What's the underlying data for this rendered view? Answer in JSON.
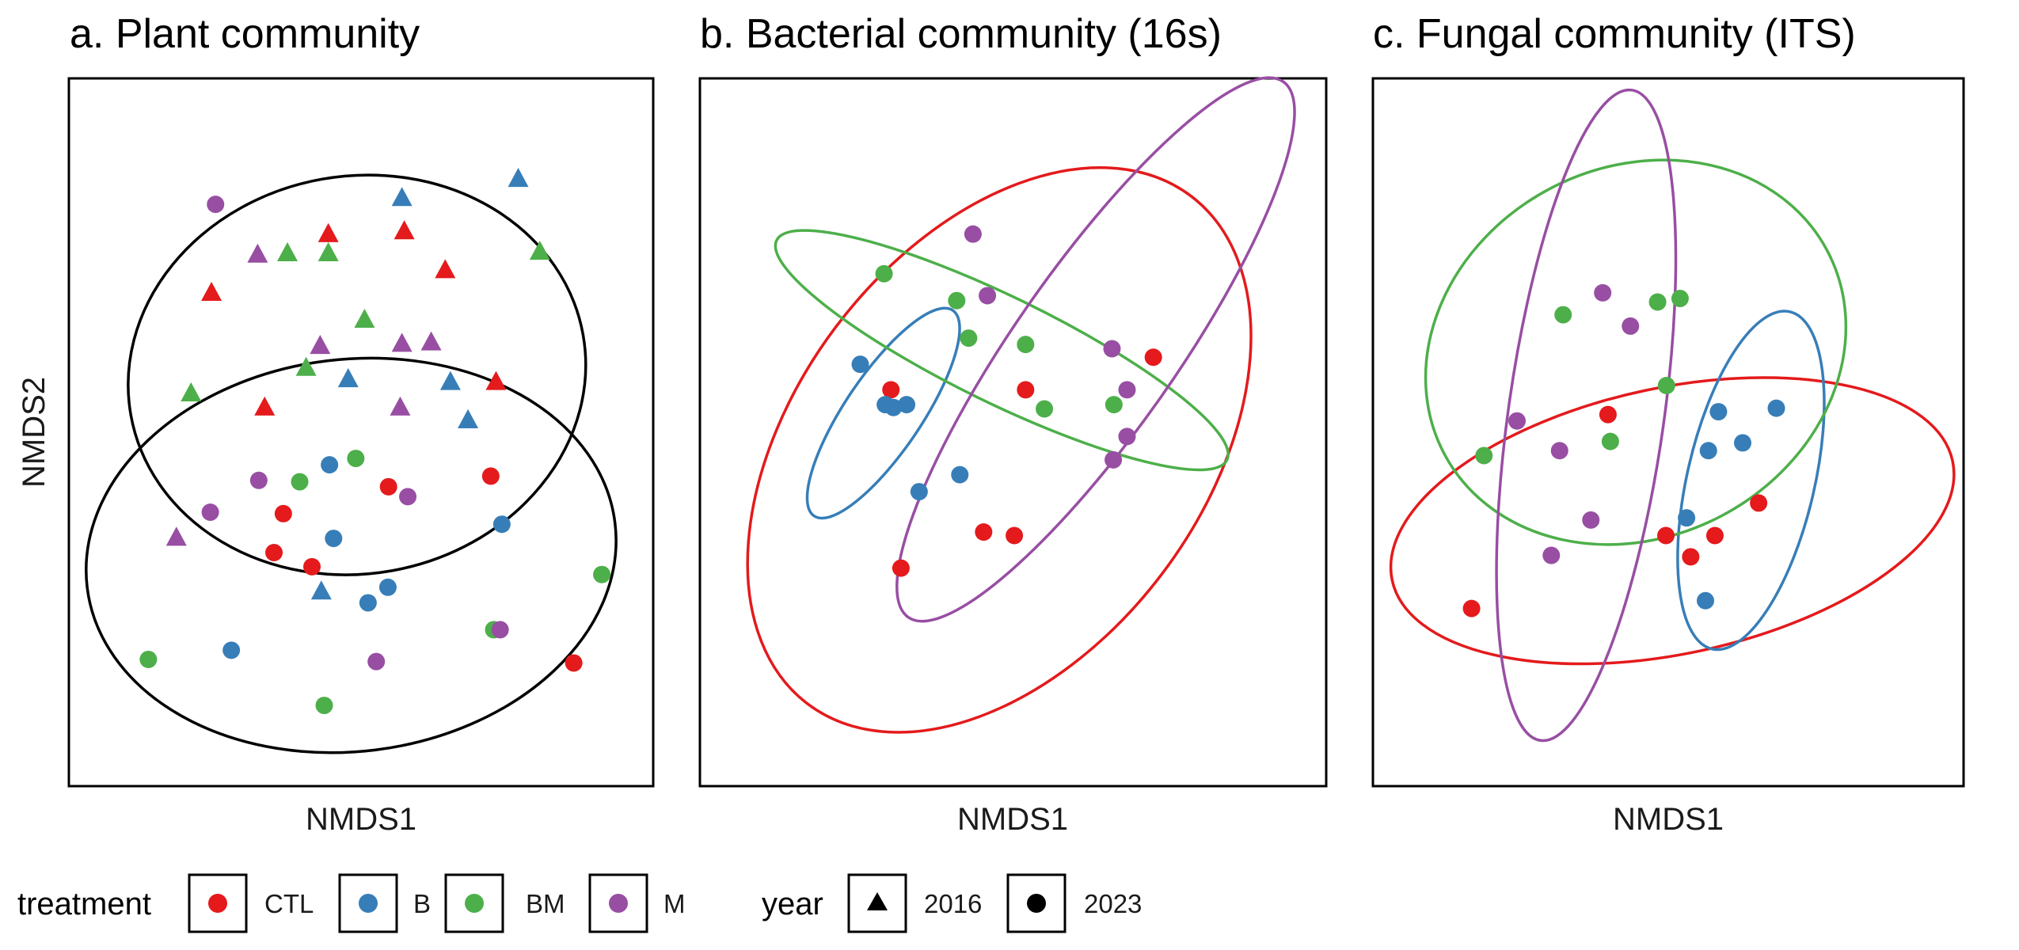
{
  "chart_data": [
    {
      "type": "scatter",
      "title": "a. Plant community",
      "xlabel": "NMDS1",
      "ylabel": "NMDS2",
      "xlim": [
        0,
        1
      ],
      "ylim": [
        0,
        1
      ],
      "grid": false,
      "points": [
        {
          "x": 0.251,
          "y": 0.822,
          "group": "M",
          "year": "2023"
        },
        {
          "x": 0.769,
          "y": 0.859,
          "group": "B",
          "year": "2016"
        },
        {
          "x": 0.57,
          "y": 0.832,
          "group": "B",
          "year": "2016"
        },
        {
          "x": 0.444,
          "y": 0.781,
          "group": "CTL",
          "year": "2016"
        },
        {
          "x": 0.574,
          "y": 0.785,
          "group": "CTL",
          "year": "2016"
        },
        {
          "x": 0.323,
          "y": 0.752,
          "group": "M",
          "year": "2016"
        },
        {
          "x": 0.374,
          "y": 0.754,
          "group": "BM",
          "year": "2016"
        },
        {
          "x": 0.444,
          "y": 0.754,
          "group": "BM",
          "year": "2016"
        },
        {
          "x": 0.806,
          "y": 0.756,
          "group": "BM",
          "year": "2016"
        },
        {
          "x": 0.644,
          "y": 0.73,
          "group": "CTL",
          "year": "2016"
        },
        {
          "x": 0.244,
          "y": 0.698,
          "group": "CTL",
          "year": "2016"
        },
        {
          "x": 0.506,
          "y": 0.66,
          "group": "BM",
          "year": "2016"
        },
        {
          "x": 0.43,
          "y": 0.623,
          "group": "M",
          "year": "2016"
        },
        {
          "x": 0.57,
          "y": 0.626,
          "group": "M",
          "year": "2016"
        },
        {
          "x": 0.62,
          "y": 0.628,
          "group": "M",
          "year": "2016"
        },
        {
          "x": 0.406,
          "y": 0.592,
          "group": "BM",
          "year": "2016"
        },
        {
          "x": 0.478,
          "y": 0.576,
          "group": "B",
          "year": "2016"
        },
        {
          "x": 0.653,
          "y": 0.572,
          "group": "B",
          "year": "2016"
        },
        {
          "x": 0.731,
          "y": 0.572,
          "group": "CTL",
          "year": "2016"
        },
        {
          "x": 0.209,
          "y": 0.556,
          "group": "BM",
          "year": "2016"
        },
        {
          "x": 0.335,
          "y": 0.536,
          "group": "CTL",
          "year": "2016"
        },
        {
          "x": 0.567,
          "y": 0.536,
          "group": "M",
          "year": "2016"
        },
        {
          "x": 0.683,
          "y": 0.518,
          "group": "B",
          "year": "2016"
        },
        {
          "x": 0.491,
          "y": 0.463,
          "group": "BM",
          "year": "2023"
        },
        {
          "x": 0.446,
          "y": 0.454,
          "group": "B",
          "year": "2023"
        },
        {
          "x": 0.722,
          "y": 0.438,
          "group": "CTL",
          "year": "2023"
        },
        {
          "x": 0.325,
          "y": 0.432,
          "group": "M",
          "year": "2023"
        },
        {
          "x": 0.395,
          "y": 0.43,
          "group": "BM",
          "year": "2023"
        },
        {
          "x": 0.547,
          "y": 0.423,
          "group": "CTL",
          "year": "2023"
        },
        {
          "x": 0.58,
          "y": 0.409,
          "group": "M",
          "year": "2023"
        },
        {
          "x": 0.242,
          "y": 0.387,
          "group": "M",
          "year": "2023"
        },
        {
          "x": 0.367,
          "y": 0.385,
          "group": "CTL",
          "year": "2023"
        },
        {
          "x": 0.741,
          "y": 0.37,
          "group": "B",
          "year": "2023"
        },
        {
          "x": 0.184,
          "y": 0.352,
          "group": "M",
          "year": "2016"
        },
        {
          "x": 0.453,
          "y": 0.35,
          "group": "B",
          "year": "2023"
        },
        {
          "x": 0.351,
          "y": 0.33,
          "group": "CTL",
          "year": "2023"
        },
        {
          "x": 0.416,
          "y": 0.31,
          "group": "CTL",
          "year": "2023"
        },
        {
          "x": 0.912,
          "y": 0.299,
          "group": "BM",
          "year": "2023"
        },
        {
          "x": 0.546,
          "y": 0.281,
          "group": "B",
          "year": "2023"
        },
        {
          "x": 0.432,
          "y": 0.276,
          "group": "B",
          "year": "2016"
        },
        {
          "x": 0.512,
          "y": 0.259,
          "group": "B",
          "year": "2023"
        },
        {
          "x": 0.727,
          "y": 0.221,
          "group": "BM",
          "year": "2023"
        },
        {
          "x": 0.738,
          "y": 0.221,
          "group": "M",
          "year": "2023"
        },
        {
          "x": 0.278,
          "y": 0.192,
          "group": "B",
          "year": "2023"
        },
        {
          "x": 0.864,
          "y": 0.174,
          "group": "CTL",
          "year": "2023"
        },
        {
          "x": 0.136,
          "y": 0.179,
          "group": "BM",
          "year": "2023"
        },
        {
          "x": 0.526,
          "y": 0.176,
          "group": "M",
          "year": "2023"
        },
        {
          "x": 0.437,
          "y": 0.114,
          "group": "BM",
          "year": "2023"
        }
      ],
      "ellipses": [
        {
          "group": "2016",
          "cx": 0.493,
          "cy": 0.581,
          "rx": 0.393,
          "ry": 0.281,
          "angle": -10
        },
        {
          "group": "2023",
          "cx": 0.483,
          "cy": 0.326,
          "rx": 0.455,
          "ry": 0.277,
          "angle": -7
        }
      ]
    },
    {
      "type": "scatter",
      "title": "b. Bacterial community (16s)",
      "xlabel": "NMDS1",
      "ylabel": "",
      "xlim": [
        0,
        1
      ],
      "ylim": [
        0,
        1
      ],
      "grid": false,
      "points": [
        {
          "x": 0.436,
          "y": 0.78,
          "group": "M",
          "year": "2023"
        },
        {
          "x": 0.294,
          "y": 0.724,
          "group": "BM",
          "year": "2023"
        },
        {
          "x": 0.459,
          "y": 0.693,
          "group": "M",
          "year": "2023"
        },
        {
          "x": 0.41,
          "y": 0.686,
          "group": "BM",
          "year": "2023"
        },
        {
          "x": 0.429,
          "y": 0.633,
          "group": "BM",
          "year": "2023"
        },
        {
          "x": 0.52,
          "y": 0.624,
          "group": "BM",
          "year": "2023"
        },
        {
          "x": 0.658,
          "y": 0.618,
          "group": "M",
          "year": "2023"
        },
        {
          "x": 0.724,
          "y": 0.606,
          "group": "CTL",
          "year": "2023"
        },
        {
          "x": 0.256,
          "y": 0.596,
          "group": "B",
          "year": "2023"
        },
        {
          "x": 0.305,
          "y": 0.56,
          "group": "CTL",
          "year": "2023"
        },
        {
          "x": 0.52,
          "y": 0.56,
          "group": "CTL",
          "year": "2023"
        },
        {
          "x": 0.682,
          "y": 0.56,
          "group": "M",
          "year": "2023"
        },
        {
          "x": 0.296,
          "y": 0.539,
          "group": "B",
          "year": "2023"
        },
        {
          "x": 0.309,
          "y": 0.535,
          "group": "B",
          "year": "2023"
        },
        {
          "x": 0.33,
          "y": 0.539,
          "group": "B",
          "year": "2023"
        },
        {
          "x": 0.55,
          "y": 0.533,
          "group": "BM",
          "year": "2023"
        },
        {
          "x": 0.661,
          "y": 0.539,
          "group": "BM",
          "year": "2023"
        },
        {
          "x": 0.682,
          "y": 0.494,
          "group": "M",
          "year": "2023"
        },
        {
          "x": 0.66,
          "y": 0.461,
          "group": "M",
          "year": "2023"
        },
        {
          "x": 0.415,
          "y": 0.44,
          "group": "B",
          "year": "2023"
        },
        {
          "x": 0.35,
          "y": 0.416,
          "group": "B",
          "year": "2023"
        },
        {
          "x": 0.453,
          "y": 0.359,
          "group": "CTL",
          "year": "2023"
        },
        {
          "x": 0.502,
          "y": 0.354,
          "group": "CTL",
          "year": "2023"
        },
        {
          "x": 0.321,
          "y": 0.308,
          "group": "CTL",
          "year": "2023"
        }
      ],
      "ellipses": [
        {
          "group": "CTL",
          "cx": 0.478,
          "cy": 0.475,
          "rx": 0.508,
          "ry": 0.289,
          "angle": -53
        },
        {
          "group": "B",
          "cx": 0.293,
          "cy": 0.527,
          "rx": 0.198,
          "ry": 0.054,
          "angle": -56
        },
        {
          "group": "BM",
          "cx": 0.482,
          "cy": 0.616,
          "rx": 0.4,
          "ry": 0.075,
          "angle": 26
        },
        {
          "group": "M",
          "cx": 0.632,
          "cy": 0.617,
          "rx": 0.522,
          "ry": 0.114,
          "angle": -55
        }
      ]
    },
    {
      "type": "scatter",
      "title": "c. Fungal community (ITS)",
      "xlabel": "NMDS1",
      "ylabel": "",
      "xlim": [
        0,
        1
      ],
      "ylim": [
        0,
        1
      ],
      "grid": false,
      "points": [
        {
          "x": 0.389,
          "y": 0.697,
          "group": "M",
          "year": "2023"
        },
        {
          "x": 0.482,
          "y": 0.684,
          "group": "BM",
          "year": "2023"
        },
        {
          "x": 0.52,
          "y": 0.689,
          "group": "BM",
          "year": "2023"
        },
        {
          "x": 0.322,
          "y": 0.666,
          "group": "BM",
          "year": "2023"
        },
        {
          "x": 0.436,
          "y": 0.65,
          "group": "M",
          "year": "2023"
        },
        {
          "x": 0.497,
          "y": 0.566,
          "group": "BM",
          "year": "2023"
        },
        {
          "x": 0.585,
          "y": 0.529,
          "group": "B",
          "year": "2023"
        },
        {
          "x": 0.683,
          "y": 0.534,
          "group": "B",
          "year": "2023"
        },
        {
          "x": 0.398,
          "y": 0.525,
          "group": "CTL",
          "year": "2023"
        },
        {
          "x": 0.244,
          "y": 0.516,
          "group": "M",
          "year": "2023"
        },
        {
          "x": 0.402,
          "y": 0.487,
          "group": "BM",
          "year": "2023"
        },
        {
          "x": 0.626,
          "y": 0.485,
          "group": "B",
          "year": "2023"
        },
        {
          "x": 0.316,
          "y": 0.474,
          "group": "M",
          "year": "2023"
        },
        {
          "x": 0.568,
          "y": 0.474,
          "group": "B",
          "year": "2023"
        },
        {
          "x": 0.188,
          "y": 0.467,
          "group": "BM",
          "year": "2023"
        },
        {
          "x": 0.653,
          "y": 0.4,
          "group": "CTL",
          "year": "2023"
        },
        {
          "x": 0.531,
          "y": 0.379,
          "group": "B",
          "year": "2023"
        },
        {
          "x": 0.369,
          "y": 0.376,
          "group": "M",
          "year": "2023"
        },
        {
          "x": 0.496,
          "y": 0.354,
          "group": "CTL",
          "year": "2023"
        },
        {
          "x": 0.579,
          "y": 0.354,
          "group": "CTL",
          "year": "2023"
        },
        {
          "x": 0.538,
          "y": 0.324,
          "group": "CTL",
          "year": "2023"
        },
        {
          "x": 0.302,
          "y": 0.326,
          "group": "M",
          "year": "2023"
        },
        {
          "x": 0.563,
          "y": 0.262,
          "group": "B",
          "year": "2023"
        },
        {
          "x": 0.167,
          "y": 0.251,
          "group": "CTL",
          "year": "2023"
        }
      ],
      "ellipses": [
        {
          "group": "CTL",
          "cx": 0.507,
          "cy": 0.375,
          "rx": 0.485,
          "ry": 0.188,
          "angle": -12
        },
        {
          "group": "B",
          "cx": 0.64,
          "cy": 0.432,
          "rx": 0.293,
          "ry": 0.09,
          "angle": -77
        },
        {
          "group": "BM",
          "cx": 0.445,
          "cy": 0.613,
          "rx": 0.367,
          "ry": 0.261,
          "angle": -28
        },
        {
          "group": "M",
          "cx": 0.361,
          "cy": 0.524,
          "rx": 0.556,
          "ry": 0.11,
          "angle": -82
        }
      ]
    }
  ],
  "legend": {
    "treatment_title": "treatment",
    "year_title": "year",
    "treatments": [
      {
        "label": "CTL",
        "color": "#e41a1c"
      },
      {
        "label": "B",
        "color": "#377eb8"
      },
      {
        "label": "BM",
        "color": "#4daf4a"
      },
      {
        "label": "M",
        "color": "#984ea3"
      }
    ],
    "years": [
      {
        "label": "2016",
        "shape": "triangle"
      },
      {
        "label": "2023",
        "shape": "circle"
      }
    ]
  },
  "colors": {
    "CTL": "#e41a1c",
    "B": "#377eb8",
    "BM": "#4daf4a",
    "M": "#984ea3",
    "2016": "#000000",
    "2023": "#000000"
  }
}
